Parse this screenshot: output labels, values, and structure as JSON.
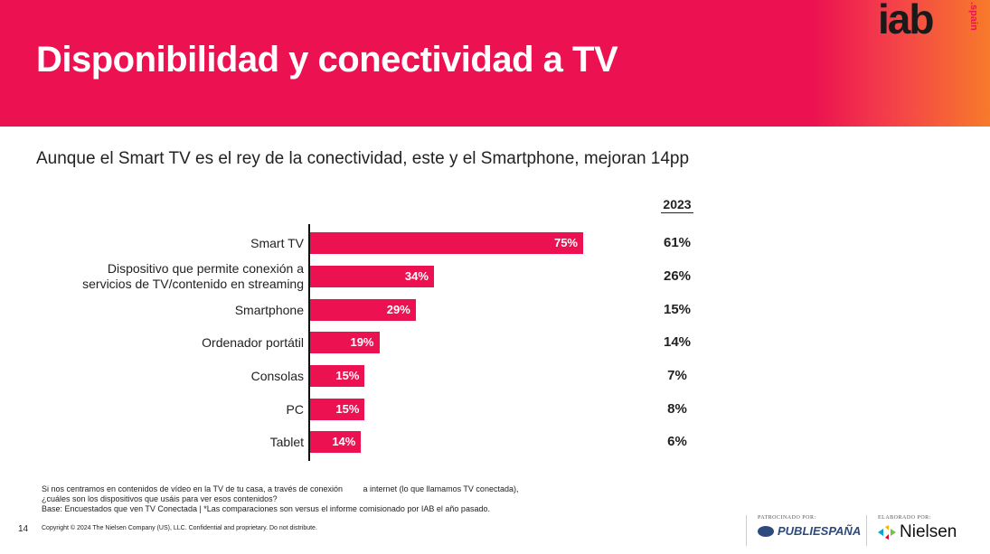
{
  "header": {
    "title": "Disponibilidad y conectividad a TV",
    "logo_text": "iab",
    "logo_sub": ".spain"
  },
  "subtitle": "Aunque el Smart TV es el rey de la conectividad, este y el Smartphone, mejoran 14pp",
  "comparison_year": "2023",
  "chart_data": {
    "type": "bar",
    "orientation": "horizontal",
    "categories": [
      "Smart TV",
      "Dispositivo que permite conexión a servicios de TV/contenido en streaming",
      "Smartphone",
      "Ordenador portátil",
      "Consolas",
      "PC",
      "Tablet"
    ],
    "category_lines": [
      [
        "Smart TV"
      ],
      [
        "Dispositivo que permite conexión a",
        "servicios de TV/contenido en streaming"
      ],
      [
        "Smartphone"
      ],
      [
        "Ordenador portátil"
      ],
      [
        "Consolas"
      ],
      [
        "PC"
      ],
      [
        "Tablet"
      ]
    ],
    "values": [
      75,
      34,
      29,
      19,
      15,
      15,
      14
    ],
    "value_labels": [
      "75%",
      "34%",
      "29%",
      "19%",
      "15%",
      "15%",
      "14%"
    ],
    "comparison_values": [
      61,
      26,
      15,
      14,
      7,
      8,
      6
    ],
    "comparison_labels": [
      "61%",
      "26%",
      "15%",
      "14%",
      "7%",
      "8%",
      "6%"
    ],
    "bar_color": "#ec1150",
    "xlim": [
      0,
      100
    ]
  },
  "notes": [
    "Si nos centramos en contenidos de vídeo en la TV de tu casa, a través de conexión         a internet (lo que llamamos TV conectada),",
    "¿cuáles son los dispositivos que usáis para ver esos contenidos?",
    "Base: Encuestados que ven TV Conectada | *Las comparaciones son versus el informe comisionado por IAB el año pasado."
  ],
  "footer": {
    "page_number": "14",
    "copyright": "Copyright © 2024 The Nielsen Company (US), LLC. Confidential and proprietary. Do not distribute.",
    "sponsor_caption": "PATROCINADO POR:",
    "sponsor_name": "PUBLIESPAÑA",
    "maker_caption": "ELABORADO POR:",
    "maker_name": "Nielsen"
  }
}
